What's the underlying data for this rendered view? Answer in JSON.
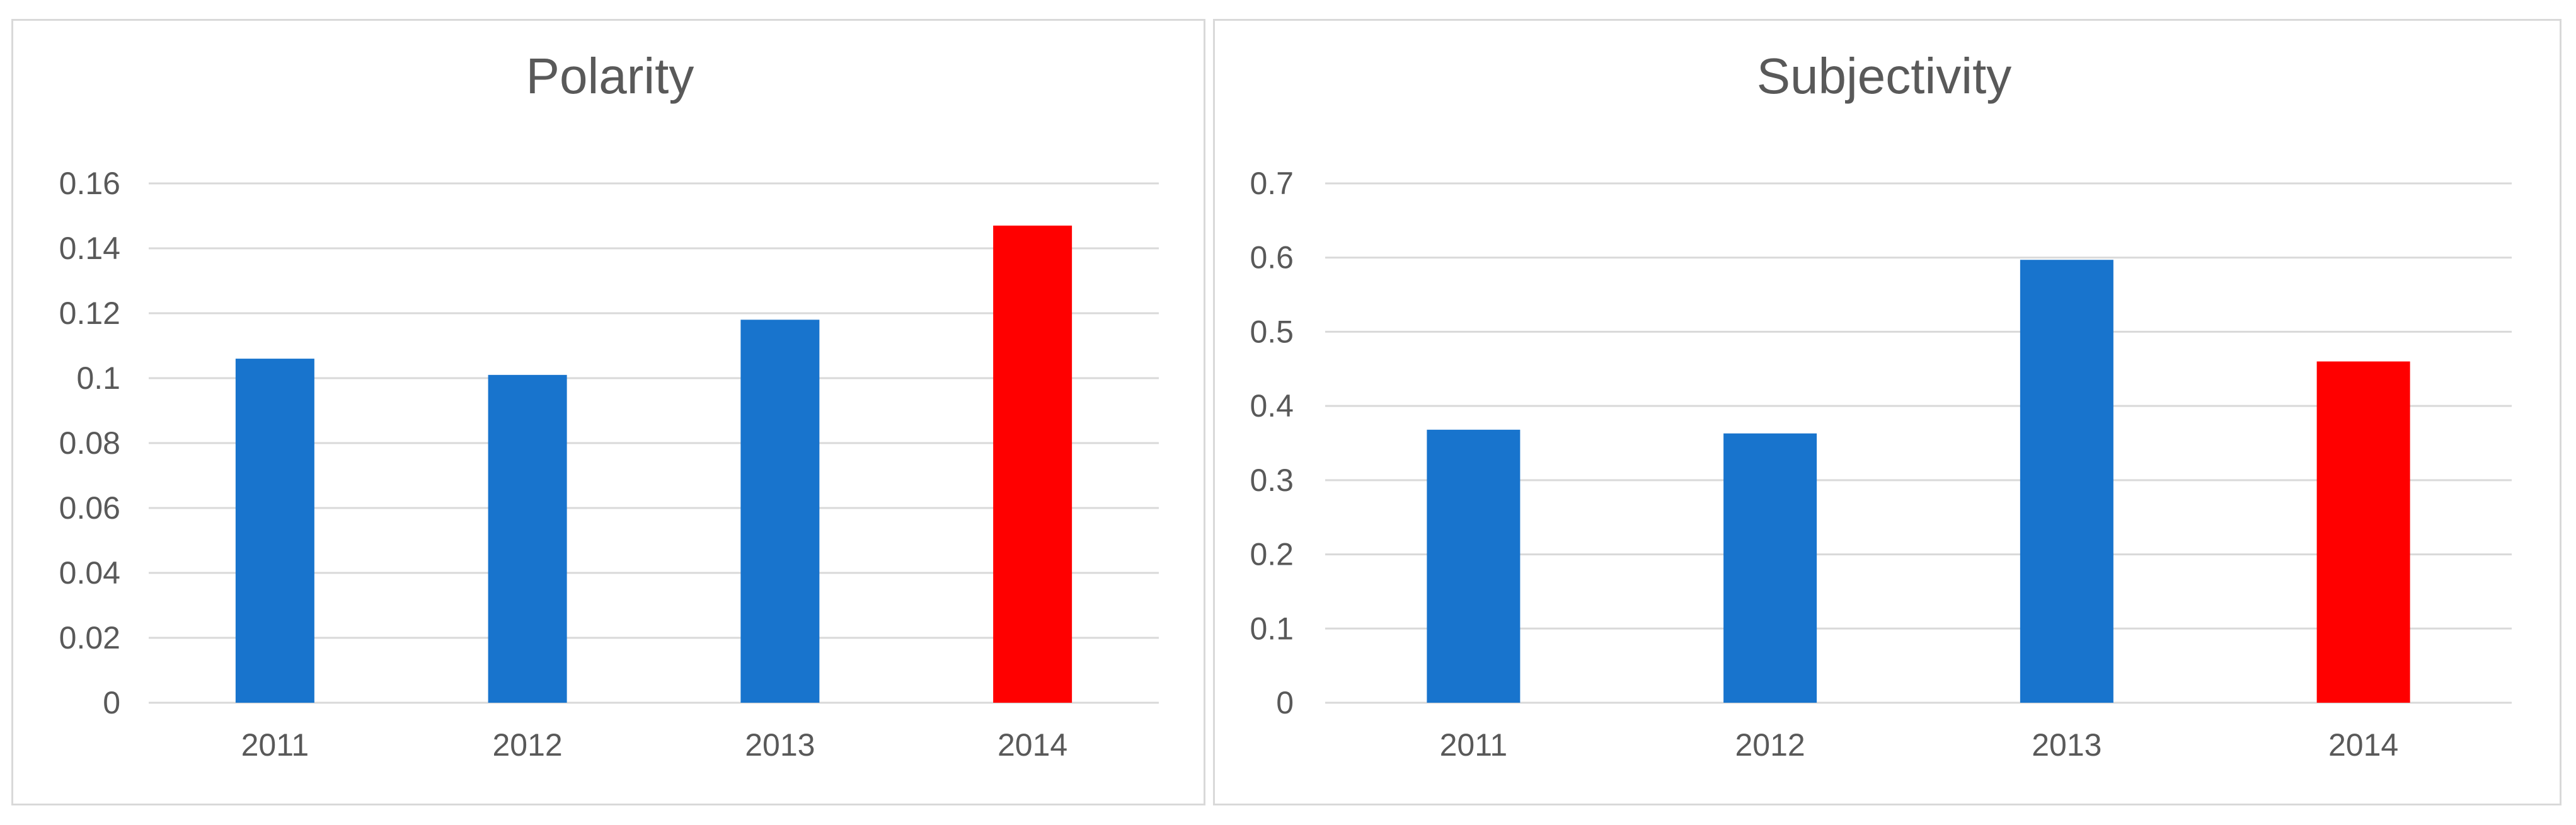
{
  "colors": {
    "series": "#1874cd",
    "highlight": "#ff0000",
    "grid": "#d9d9d9",
    "text": "#595959"
  },
  "chart_data": [
    {
      "type": "bar",
      "title": "Polarity",
      "xlabel": "",
      "ylabel": "",
      "categories": [
        "2011",
        "2012",
        "2013",
        "2014"
      ],
      "values": [
        0.106,
        0.101,
        0.118,
        0.147
      ],
      "bar_colors": [
        "#1874cd",
        "#1874cd",
        "#1874cd",
        "#ff0000"
      ],
      "ylim": [
        0,
        0.16
      ],
      "yticks": [
        "0",
        "0.02",
        "0.04",
        "0.06",
        "0.08",
        "0.1",
        "0.12",
        "0.14",
        "0.16"
      ],
      "grid": true,
      "legend": "none"
    },
    {
      "type": "bar",
      "title": "Subjectivity",
      "xlabel": "",
      "ylabel": "",
      "categories": [
        "2011",
        "2012",
        "2013",
        "2014"
      ],
      "values": [
        0.368,
        0.363,
        0.597,
        0.46
      ],
      "bar_colors": [
        "#1874cd",
        "#1874cd",
        "#1874cd",
        "#ff0000"
      ],
      "ylim": [
        0,
        0.7
      ],
      "yticks": [
        "0",
        "0.1",
        "0.2",
        "0.3",
        "0.4",
        "0.5",
        "0.6",
        "0.7"
      ],
      "grid": true,
      "legend": "none"
    }
  ]
}
